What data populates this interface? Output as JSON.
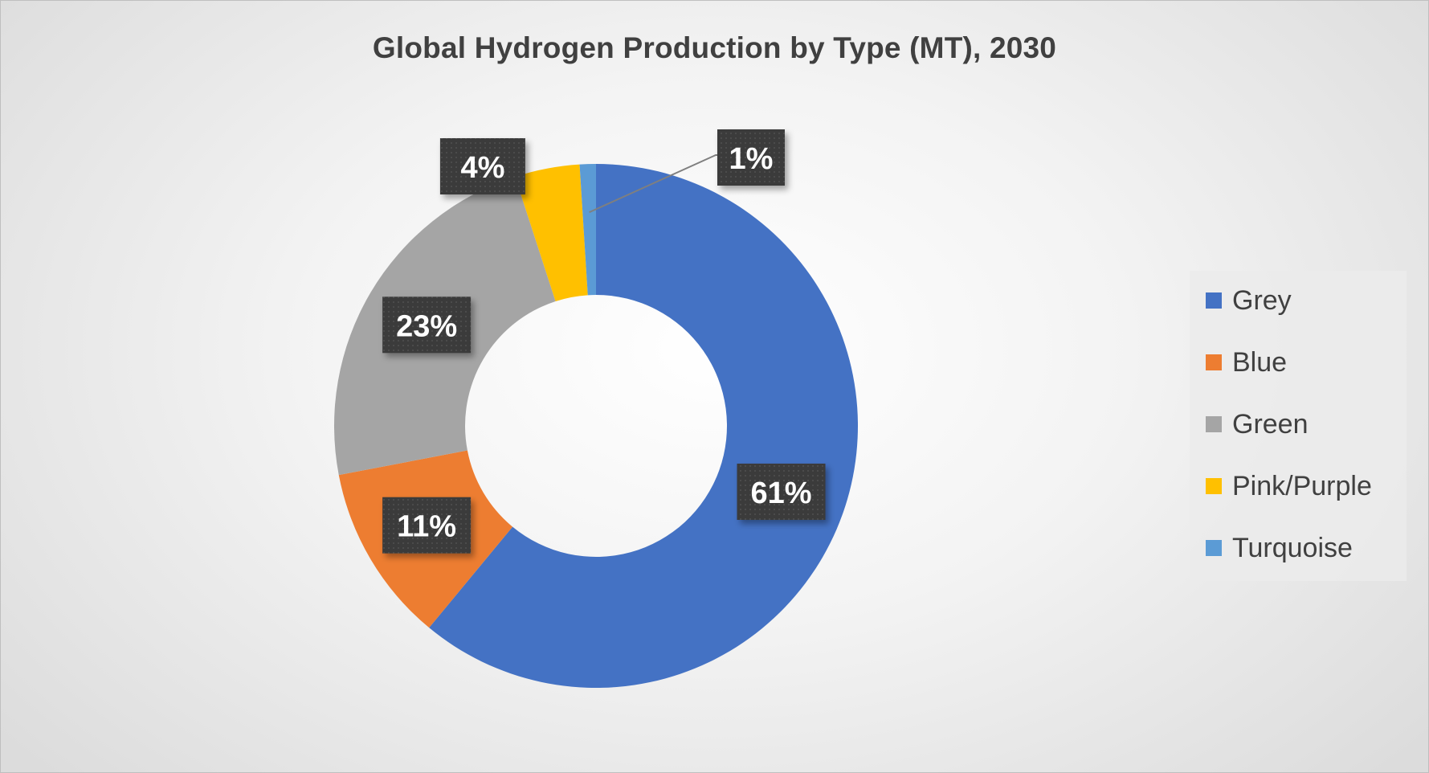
{
  "chart_data": {
    "type": "donut",
    "title": "Global Hydrogen Production by Type (MT), 2030",
    "categories": [
      "Grey",
      "Blue",
      "Green",
      "Pink/Purple",
      "Turquoise"
    ],
    "values": [
      61,
      11,
      23,
      4,
      1
    ],
    "data_labels": [
      "61%",
      "11%",
      "23%",
      "4%",
      "1%"
    ],
    "colors": [
      "#4472C4",
      "#ED7D31",
      "#A5A5A5",
      "#FFC000",
      "#5B9BD5"
    ],
    "legend_position": "right"
  }
}
